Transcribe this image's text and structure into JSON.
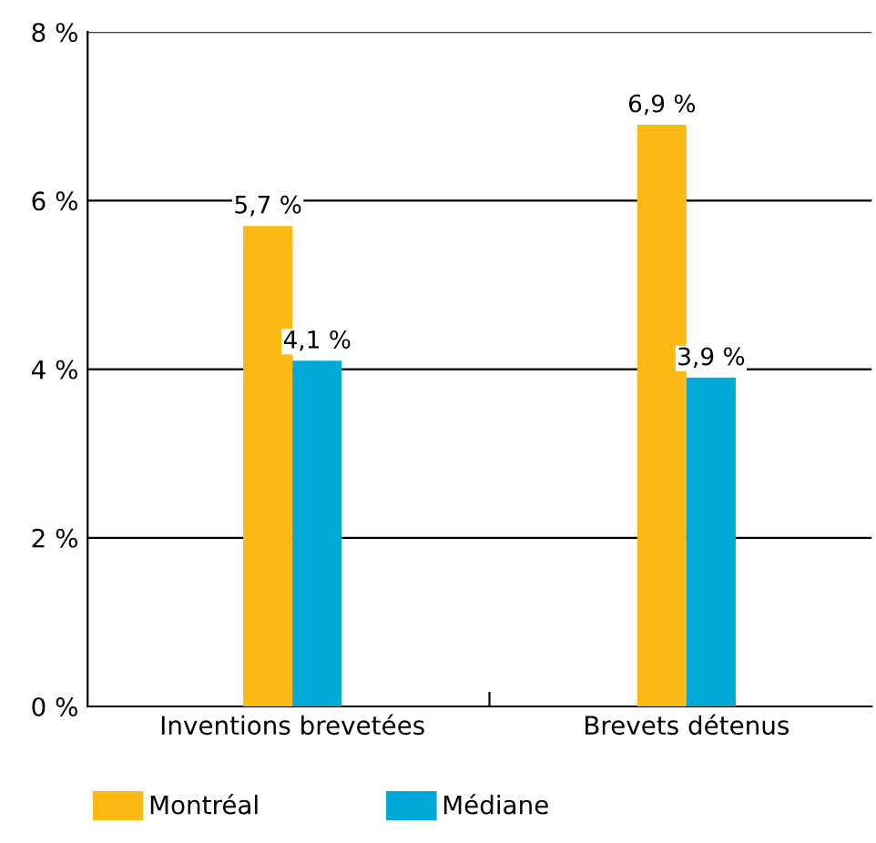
{
  "chart_data": {
    "type": "bar",
    "categories": [
      "Inventions brevetées",
      "Brevets détenus"
    ],
    "series": [
      {
        "name": "Montréal",
        "color": "#fdb913",
        "values": [
          5.7,
          6.9
        ],
        "value_labels": [
          "5,7 %",
          "6,9 %"
        ]
      },
      {
        "name": "Médiane",
        "color": "#00a9d8",
        "values": [
          4.1,
          3.9
        ],
        "value_labels": [
          "4,1 %",
          "3,9 %"
        ]
      }
    ],
    "ylim": [
      0,
      8
    ],
    "yticks": [
      {
        "value": 0,
        "label": "0 %"
      },
      {
        "value": 2,
        "label": "2 %"
      },
      {
        "value": 4,
        "label": "4 %"
      },
      {
        "value": 6,
        "label": "6 %"
      },
      {
        "value": 8,
        "label": "8 %"
      }
    ],
    "grid": "y",
    "legend": "bottom"
  }
}
